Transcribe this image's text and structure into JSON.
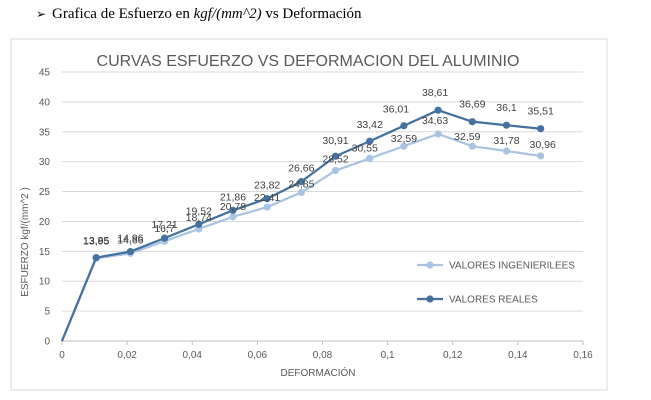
{
  "heading": {
    "bullet": "➢",
    "prefix": "Grafica de Esfuerzo en ",
    "formula": "kgf/(mm^2)",
    "suffix": " vs Deformación"
  },
  "chart_data": {
    "type": "line",
    "title": "CURVAS ESFUERZO VS DEFORMACION DEL ALUMINIO",
    "xlabel": "DEFORMACIÓN",
    "ylabel": "ESFUERZO kgf/(mm^2 )",
    "xlim": [
      0,
      0.16
    ],
    "ylim": [
      0,
      45
    ],
    "x_ticks": [
      "0",
      "0,02",
      "0,04",
      "0,06",
      "0,08",
      "0,1",
      "0,12",
      "0,14",
      "0,16"
    ],
    "y_ticks": [
      "0",
      "5",
      "10",
      "15",
      "20",
      "25",
      "30",
      "35",
      "40",
      "45"
    ],
    "grid": "horizontal",
    "legend_position": "right",
    "series": [
      {
        "name": "VALORES INGENIERILEES",
        "color": "#a9c4e2",
        "x": [
          0,
          0.0105,
          0.021,
          0.0315,
          0.042,
          0.0525,
          0.063,
          0.0735,
          0.084,
          0.0945,
          0.105,
          0.1155,
          0.126,
          0.1365,
          0.147
        ],
        "y": [
          0,
          13.85,
          14.66,
          16.7,
          18.74,
          20.78,
          22.41,
          24.85,
          28.52,
          30.55,
          32.59,
          34.63,
          32.59,
          31.78,
          30.96
        ],
        "labels": [
          "",
          "13,85",
          "14,66",
          "16,7",
          "18,74",
          "20,78",
          "22,41",
          "24,85",
          "28,52",
          "30,55",
          "32,59",
          "34,63",
          "32,59",
          "31,78",
          "30,96"
        ]
      },
      {
        "name": "VALORES REALES",
        "color": "#44719f",
        "x": [
          0,
          0.0105,
          0.021,
          0.0315,
          0.042,
          0.0525,
          0.063,
          0.0735,
          0.084,
          0.0945,
          0.105,
          0.1155,
          0.126,
          0.1365,
          0.147
        ],
        "y": [
          0,
          13.95,
          14.96,
          17.21,
          19.52,
          21.86,
          23.82,
          26.66,
          30.91,
          33.42,
          36.01,
          38.61,
          36.69,
          36.1,
          35.51
        ],
        "labels": [
          "",
          "13,95",
          "14,96",
          "17,21",
          "19,52",
          "21,86",
          "23,82",
          "26,66",
          "30,91",
          "33,42",
          "36,01",
          "38,61",
          "36,69",
          "36,1",
          "35,51"
        ]
      }
    ]
  }
}
